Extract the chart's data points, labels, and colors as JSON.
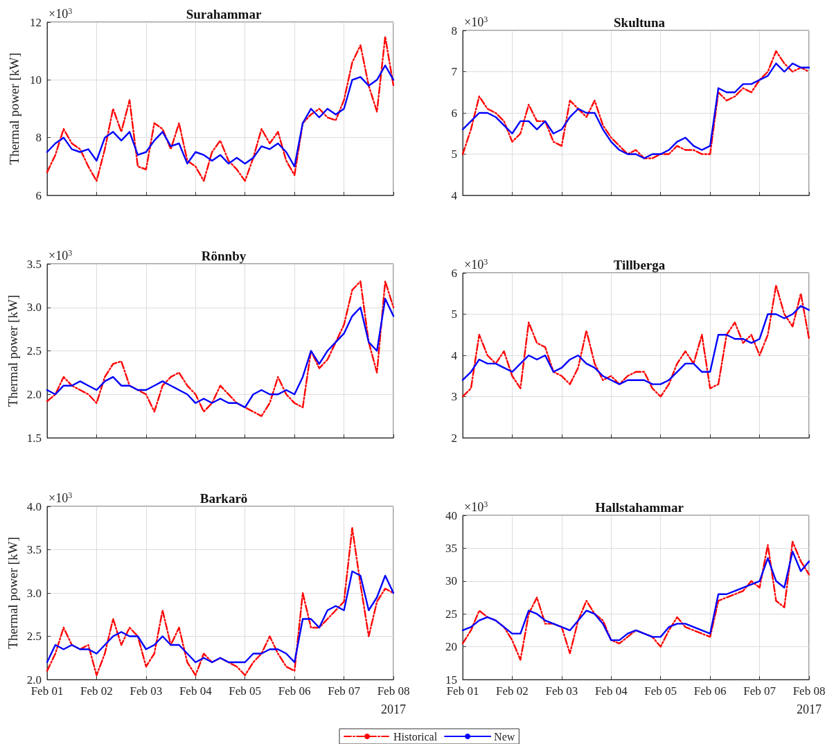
{
  "chart_data": [
    {
      "type": "line",
      "title": "Surahammar",
      "ylabel": "Thermal power [kW]",
      "annotations": [
        "×10$^{3}$"
      ],
      "tick_labels": "y",
      "grid": true,
      "legend": false,
      "marker": "none",
      "x": [
        "2017-02-01T00:00",
        "2017-02-01T04:00",
        "2017-02-01T08:00",
        "2017-02-01T12:00",
        "2017-02-01T16:00",
        "2017-02-01T20:00",
        "2017-02-02T00:00",
        "2017-02-02T04:00",
        "2017-02-02T08:00",
        "2017-02-02T12:00",
        "2017-02-02T16:00",
        "2017-02-02T20:00",
        "2017-02-03T00:00",
        "2017-02-03T04:00",
        "2017-02-03T08:00",
        "2017-02-03T12:00",
        "2017-02-03T16:00",
        "2017-02-03T20:00",
        "2017-02-04T00:00",
        "2017-02-04T04:00",
        "2017-02-04T08:00",
        "2017-02-04T12:00",
        "2017-02-04T16:00",
        "2017-02-04T20:00",
        "2017-02-05T00:00",
        "2017-02-05T04:00",
        "2017-02-05T08:00",
        "2017-02-05T12:00",
        "2017-02-05T16:00",
        "2017-02-05T20:00",
        "2017-02-06T00:00",
        "2017-02-06T04:00",
        "2017-02-06T08:00",
        "2017-02-06T12:00",
        "2017-02-06T16:00",
        "2017-02-06T20:00",
        "2017-02-07T00:00",
        "2017-02-07T04:00",
        "2017-02-07T08:00",
        "2017-02-07T12:00",
        "2017-02-07T16:00",
        "2017-02-07T20:00",
        "2017-02-08T00:00"
      ],
      "xlim": [
        "2017-02-01T00:00",
        "2017-02-08T00:00"
      ],
      "xticks": [
        {
          "value": "2017-02-01",
          "label": null
        },
        {
          "value": "2017-02-02",
          "label": null
        },
        {
          "value": "2017-02-03",
          "label": null
        },
        {
          "value": "2017-02-04",
          "label": null
        },
        {
          "value": "2017-02-05",
          "label": null
        },
        {
          "value": "2017-02-06",
          "label": null
        },
        {
          "value": "2017-02-07",
          "label": null
        },
        {
          "value": "2017-02-08",
          "label": null
        }
      ],
      "ylim": [
        6,
        12
      ],
      "yticks": [
        6,
        8,
        10,
        12
      ],
      "series": [
        {
          "color": "#ff0000",
          "line_style": "dashed",
          "values": [
            6.8,
            7.4,
            8.3,
            7.8,
            7.6,
            7.0,
            6.5,
            7.6,
            9.0,
            8.2,
            9.3,
            7.0,
            6.9,
            8.5,
            8.3,
            7.6,
            8.5,
            7.2,
            7.0,
            6.5,
            7.5,
            7.9,
            7.2,
            6.9,
            6.5,
            7.3,
            8.3,
            7.8,
            8.2,
            7.2,
            6.7,
            8.5,
            8.8,
            9.0,
            8.7,
            8.6,
            9.3,
            10.6,
            11.2,
            9.8,
            8.9,
            11.5,
            9.8
          ]
        },
        {
          "color": "#0000ff",
          "line_style": "solid",
          "values": [
            7.5,
            7.8,
            8.0,
            7.6,
            7.5,
            7.6,
            7.2,
            8.0,
            8.2,
            7.9,
            8.2,
            7.4,
            7.5,
            7.9,
            8.2,
            7.7,
            7.8,
            7.1,
            7.5,
            7.4,
            7.2,
            7.4,
            7.1,
            7.3,
            7.1,
            7.3,
            7.7,
            7.6,
            7.8,
            7.5,
            7.0,
            8.5,
            9.0,
            8.7,
            9.0,
            8.8,
            9.0,
            10.0,
            10.1,
            9.8,
            10.0,
            10.5,
            10.0
          ]
        }
      ]
    },
    {
      "type": "line",
      "title": "Skultuna",
      "annotations": [
        "×10$^{3}$"
      ],
      "tick_labels": "y",
      "grid": true,
      "legend": false,
      "marker": "none",
      "x": [
        "2017-02-01T00:00",
        "2017-02-01T04:00",
        "2017-02-01T08:00",
        "2017-02-01T12:00",
        "2017-02-01T16:00",
        "2017-02-01T20:00",
        "2017-02-02T00:00",
        "2017-02-02T04:00",
        "2017-02-02T08:00",
        "2017-02-02T12:00",
        "2017-02-02T16:00",
        "2017-02-02T20:00",
        "2017-02-03T00:00",
        "2017-02-03T04:00",
        "2017-02-03T08:00",
        "2017-02-03T12:00",
        "2017-02-03T16:00",
        "2017-02-03T20:00",
        "2017-02-04T00:00",
        "2017-02-04T04:00",
        "2017-02-04T08:00",
        "2017-02-04T12:00",
        "2017-02-04T16:00",
        "2017-02-04T20:00",
        "2017-02-05T00:00",
        "2017-02-05T04:00",
        "2017-02-05T08:00",
        "2017-02-05T12:00",
        "2017-02-05T16:00",
        "2017-02-05T20:00",
        "2017-02-06T00:00",
        "2017-02-06T04:00",
        "2017-02-06T08:00",
        "2017-02-06T12:00",
        "2017-02-06T16:00",
        "2017-02-06T20:00",
        "2017-02-07T00:00",
        "2017-02-07T04:00",
        "2017-02-07T08:00",
        "2017-02-07T12:00",
        "2017-02-07T16:00",
        "2017-02-07T20:00",
        "2017-02-08T00:00"
      ],
      "xlim": [
        "2017-02-01T00:00",
        "2017-02-08T00:00"
      ],
      "xticks": [
        {
          "value": "2017-02-01",
          "label": null
        },
        {
          "value": "2017-02-02",
          "label": null
        },
        {
          "value": "2017-02-03",
          "label": null
        },
        {
          "value": "2017-02-04",
          "label": null
        },
        {
          "value": "2017-02-05",
          "label": null
        },
        {
          "value": "2017-02-06",
          "label": null
        },
        {
          "value": "2017-02-07",
          "label": null
        },
        {
          "value": "2017-02-08",
          "label": null
        }
      ],
      "ylim": [
        4,
        8
      ],
      "yticks": [
        4,
        5,
        6,
        7,
        8
      ],
      "series": [
        {
          "color": "#ff0000",
          "line_style": "dashed",
          "values": [
            5.0,
            5.6,
            6.4,
            6.1,
            6.0,
            5.8,
            5.3,
            5.5,
            6.2,
            5.8,
            5.8,
            5.3,
            5.2,
            6.3,
            6.1,
            5.9,
            6.3,
            5.7,
            5.4,
            5.2,
            5.0,
            5.1,
            4.9,
            4.9,
            5.0,
            5.0,
            5.2,
            5.1,
            5.1,
            5.0,
            5.0,
            6.5,
            6.3,
            6.4,
            6.6,
            6.5,
            6.8,
            7.0,
            7.5,
            7.2,
            7.0,
            7.1,
            7.0
          ]
        },
        {
          "color": "#0000ff",
          "line_style": "solid",
          "values": [
            5.6,
            5.8,
            6.0,
            6.0,
            5.9,
            5.7,
            5.5,
            5.8,
            5.8,
            5.6,
            5.8,
            5.5,
            5.6,
            5.9,
            6.1,
            6.0,
            6.0,
            5.6,
            5.3,
            5.1,
            5.0,
            5.0,
            4.9,
            5.0,
            5.0,
            5.1,
            5.3,
            5.4,
            5.2,
            5.1,
            5.2,
            6.6,
            6.5,
            6.5,
            6.7,
            6.7,
            6.8,
            6.9,
            7.2,
            7.0,
            7.2,
            7.1,
            7.1
          ]
        }
      ]
    },
    {
      "type": "line",
      "title": "Rönnby",
      "ylabel": "Thermal power [kW]",
      "annotations": [
        "×10$^{3}$"
      ],
      "tick_labels": "y",
      "grid": true,
      "legend": false,
      "marker": "none",
      "x": [
        "2017-02-01T00:00",
        "2017-02-01T04:00",
        "2017-02-01T08:00",
        "2017-02-01T12:00",
        "2017-02-01T16:00",
        "2017-02-01T20:00",
        "2017-02-02T00:00",
        "2017-02-02T04:00",
        "2017-02-02T08:00",
        "2017-02-02T12:00",
        "2017-02-02T16:00",
        "2017-02-02T20:00",
        "2017-02-03T00:00",
        "2017-02-03T04:00",
        "2017-02-03T08:00",
        "2017-02-03T12:00",
        "2017-02-03T16:00",
        "2017-02-03T20:00",
        "2017-02-04T00:00",
        "2017-02-04T04:00",
        "2017-02-04T08:00",
        "2017-02-04T12:00",
        "2017-02-04T16:00",
        "2017-02-04T20:00",
        "2017-02-05T00:00",
        "2017-02-05T04:00",
        "2017-02-05T08:00",
        "2017-02-05T12:00",
        "2017-02-05T16:00",
        "2017-02-05T20:00",
        "2017-02-06T00:00",
        "2017-02-06T04:00",
        "2017-02-06T08:00",
        "2017-02-06T12:00",
        "2017-02-06T16:00",
        "2017-02-06T20:00",
        "2017-02-07T00:00",
        "2017-02-07T04:00",
        "2017-02-07T08:00",
        "2017-02-07T12:00",
        "2017-02-07T16:00",
        "2017-02-07T20:00",
        "2017-02-08T00:00"
      ],
      "xlim": [
        "2017-02-01T00:00",
        "2017-02-08T00:00"
      ],
      "xticks": [
        {
          "value": "2017-02-01",
          "label": null
        },
        {
          "value": "2017-02-02",
          "label": null
        },
        {
          "value": "2017-02-03",
          "label": null
        },
        {
          "value": "2017-02-04",
          "label": null
        },
        {
          "value": "2017-02-05",
          "label": null
        },
        {
          "value": "2017-02-06",
          "label": null
        },
        {
          "value": "2017-02-07",
          "label": null
        },
        {
          "value": "2017-02-08",
          "label": null
        }
      ],
      "ylim": [
        1.5,
        3.5
      ],
      "yticks": [
        1.5,
        {
          "value": 2,
          "label": "2.0"
        },
        2.5,
        {
          "value": 3,
          "label": "3.0"
        },
        3.5
      ],
      "series": [
        {
          "color": "#ff0000",
          "line_style": "dashed",
          "values": [
            1.92,
            2.0,
            2.2,
            2.1,
            2.05,
            2.0,
            1.9,
            2.2,
            2.35,
            2.38,
            2.1,
            2.05,
            2.0,
            1.8,
            2.1,
            2.2,
            2.25,
            2.1,
            2.0,
            1.8,
            1.9,
            2.1,
            2.0,
            1.9,
            1.85,
            1.8,
            1.75,
            1.9,
            2.2,
            2.0,
            1.9,
            1.85,
            2.5,
            2.3,
            2.4,
            2.6,
            2.8,
            3.2,
            3.3,
            2.6,
            2.25,
            3.3,
            3.0
          ]
        },
        {
          "color": "#0000ff",
          "line_style": "solid",
          "values": [
            2.05,
            2.0,
            2.1,
            2.1,
            2.15,
            2.1,
            2.05,
            2.15,
            2.2,
            2.1,
            2.1,
            2.05,
            2.05,
            2.1,
            2.15,
            2.1,
            2.05,
            2.0,
            1.9,
            1.95,
            1.9,
            1.95,
            1.9,
            1.9,
            1.85,
            2.0,
            2.05,
            2.0,
            2.0,
            2.05,
            2.0,
            2.2,
            2.5,
            2.35,
            2.5,
            2.6,
            2.7,
            2.9,
            3.0,
            2.6,
            2.5,
            3.1,
            2.9
          ]
        }
      ]
    },
    {
      "type": "line",
      "title": "Tillberga",
      "annotations": [
        "×10$^{3}$"
      ],
      "tick_labels": "y",
      "grid": true,
      "legend": false,
      "marker": "none",
      "x": [
        "2017-02-01T00:00",
        "2017-02-01T04:00",
        "2017-02-01T08:00",
        "2017-02-01T12:00",
        "2017-02-01T16:00",
        "2017-02-01T20:00",
        "2017-02-02T00:00",
        "2017-02-02T04:00",
        "2017-02-02T08:00",
        "2017-02-02T12:00",
        "2017-02-02T16:00",
        "2017-02-02T20:00",
        "2017-02-03T00:00",
        "2017-02-03T04:00",
        "2017-02-03T08:00",
        "2017-02-03T12:00",
        "2017-02-03T16:00",
        "2017-02-03T20:00",
        "2017-02-04T00:00",
        "2017-02-04T04:00",
        "2017-02-04T08:00",
        "2017-02-04T12:00",
        "2017-02-04T16:00",
        "2017-02-04T20:00",
        "2017-02-05T00:00",
        "2017-02-05T04:00",
        "2017-02-05T08:00",
        "2017-02-05T12:00",
        "2017-02-05T16:00",
        "2017-02-05T20:00",
        "2017-02-06T00:00",
        "2017-02-06T04:00",
        "2017-02-06T08:00",
        "2017-02-06T12:00",
        "2017-02-06T16:00",
        "2017-02-06T20:00",
        "2017-02-07T00:00",
        "2017-02-07T04:00",
        "2017-02-07T08:00",
        "2017-02-07T12:00",
        "2017-02-07T16:00",
        "2017-02-07T20:00",
        "2017-02-08T00:00"
      ],
      "xlim": [
        "2017-02-01T00:00",
        "2017-02-08T00:00"
      ],
      "xticks": [
        {
          "value": "2017-02-01",
          "label": null
        },
        {
          "value": "2017-02-02",
          "label": null
        },
        {
          "value": "2017-02-03",
          "label": null
        },
        {
          "value": "2017-02-04",
          "label": null
        },
        {
          "value": "2017-02-05",
          "label": null
        },
        {
          "value": "2017-02-06",
          "label": null
        },
        {
          "value": "2017-02-07",
          "label": null
        },
        {
          "value": "2017-02-08",
          "label": null
        }
      ],
      "ylim": [
        2,
        6
      ],
      "yticks": [
        2,
        3,
        4,
        5,
        6
      ],
      "series": [
        {
          "color": "#ff0000",
          "line_style": "dashed",
          "values": [
            3.0,
            3.2,
            4.5,
            4.0,
            3.8,
            4.1,
            3.5,
            3.2,
            4.8,
            4.3,
            4.2,
            3.6,
            3.5,
            3.3,
            3.7,
            4.6,
            3.8,
            3.4,
            3.5,
            3.3,
            3.5,
            3.6,
            3.6,
            3.2,
            3.0,
            3.3,
            3.8,
            4.1,
            3.8,
            4.5,
            3.2,
            3.3,
            4.5,
            4.8,
            4.3,
            4.5,
            4.0,
            4.5,
            5.7,
            5.0,
            4.7,
            5.5,
            4.4
          ]
        },
        {
          "color": "#0000ff",
          "line_style": "solid",
          "values": [
            3.4,
            3.6,
            3.9,
            3.8,
            3.8,
            3.7,
            3.6,
            3.8,
            4.0,
            3.9,
            4.0,
            3.6,
            3.7,
            3.9,
            4.0,
            3.8,
            3.7,
            3.5,
            3.4,
            3.3,
            3.4,
            3.4,
            3.4,
            3.3,
            3.3,
            3.4,
            3.6,
            3.8,
            3.8,
            3.6,
            3.6,
            4.5,
            4.5,
            4.4,
            4.4,
            4.3,
            4.4,
            5.0,
            5.0,
            4.9,
            5.0,
            5.2,
            5.1
          ]
        }
      ]
    },
    {
      "type": "line",
      "title": "Barkarö",
      "ylabel": "Thermal power [kW]",
      "annotations": [
        "×10$^{3}$",
        "2017"
      ],
      "grid": true,
      "legend": false,
      "marker": "none",
      "x": [
        "2017-02-01T00:00",
        "2017-02-01T04:00",
        "2017-02-01T08:00",
        "2017-02-01T12:00",
        "2017-02-01T16:00",
        "2017-02-01T20:00",
        "2017-02-02T00:00",
        "2017-02-02T04:00",
        "2017-02-02T08:00",
        "2017-02-02T12:00",
        "2017-02-02T16:00",
        "2017-02-02T20:00",
        "2017-02-03T00:00",
        "2017-02-03T04:00",
        "2017-02-03T08:00",
        "2017-02-03T12:00",
        "2017-02-03T16:00",
        "2017-02-03T20:00",
        "2017-02-04T00:00",
        "2017-02-04T04:00",
        "2017-02-04T08:00",
        "2017-02-04T12:00",
        "2017-02-04T16:00",
        "2017-02-04T20:00",
        "2017-02-05T00:00",
        "2017-02-05T04:00",
        "2017-02-05T08:00",
        "2017-02-05T12:00",
        "2017-02-05T16:00",
        "2017-02-05T20:00",
        "2017-02-06T00:00",
        "2017-02-06T04:00",
        "2017-02-06T08:00",
        "2017-02-06T12:00",
        "2017-02-06T16:00",
        "2017-02-06T20:00",
        "2017-02-07T00:00",
        "2017-02-07T04:00",
        "2017-02-07T08:00",
        "2017-02-07T12:00",
        "2017-02-07T16:00",
        "2017-02-07T20:00",
        "2017-02-08T00:00"
      ],
      "xlim": [
        "2017-02-01T00:00",
        "2017-02-08T00:00"
      ],
      "xticks": [
        {
          "value": "2017-02-01",
          "label": "Feb 01"
        },
        {
          "value": "2017-02-02",
          "label": "Feb 02"
        },
        {
          "value": "2017-02-03",
          "label": "Feb 03"
        },
        {
          "value": "2017-02-04",
          "label": "Feb 04"
        },
        {
          "value": "2017-02-05",
          "label": "Feb 05"
        },
        {
          "value": "2017-02-06",
          "label": "Feb 06"
        },
        {
          "value": "2017-02-07",
          "label": "Feb 07"
        },
        {
          "value": "2017-02-08",
          "label": "Feb 08"
        }
      ],
      "ylim": [
        2,
        4
      ],
      "yticks": [
        {
          "value": 2,
          "label": "2.0"
        },
        2.5,
        {
          "value": 3,
          "label": "3.0"
        },
        3.5,
        {
          "value": 4,
          "label": "4.0"
        }
      ],
      "series": [
        {
          "color": "#ff0000",
          "line_style": "dashed",
          "values": [
            2.1,
            2.3,
            2.6,
            2.4,
            2.35,
            2.4,
            2.05,
            2.3,
            2.7,
            2.4,
            2.6,
            2.5,
            2.15,
            2.3,
            2.8,
            2.4,
            2.6,
            2.2,
            2.05,
            2.3,
            2.2,
            2.25,
            2.2,
            2.15,
            2.05,
            2.2,
            2.3,
            2.5,
            2.3,
            2.15,
            2.1,
            3.0,
            2.6,
            2.6,
            2.7,
            2.8,
            2.9,
            3.75,
            3.1,
            2.5,
            2.9,
            3.05,
            3.0
          ]
        },
        {
          "color": "#0000ff",
          "line_style": "solid",
          "values": [
            2.2,
            2.4,
            2.35,
            2.4,
            2.35,
            2.35,
            2.3,
            2.4,
            2.5,
            2.55,
            2.5,
            2.5,
            2.35,
            2.4,
            2.5,
            2.4,
            2.4,
            2.3,
            2.2,
            2.25,
            2.2,
            2.25,
            2.2,
            2.2,
            2.2,
            2.3,
            2.3,
            2.35,
            2.35,
            2.3,
            2.2,
            2.7,
            2.7,
            2.6,
            2.8,
            2.85,
            2.8,
            3.25,
            3.2,
            2.8,
            2.95,
            3.2,
            3.0
          ]
        }
      ]
    },
    {
      "type": "line",
      "title": "Hallstahammar",
      "annotations": [
        "×10$^{3}$",
        "2017"
      ],
      "grid": true,
      "legend": "bottom",
      "marker": "none",
      "x": [
        "2017-02-01T00:00",
        "2017-02-01T04:00",
        "2017-02-01T08:00",
        "2017-02-01T12:00",
        "2017-02-01T16:00",
        "2017-02-01T20:00",
        "2017-02-02T00:00",
        "2017-02-02T04:00",
        "2017-02-02T08:00",
        "2017-02-02T12:00",
        "2017-02-02T16:00",
        "2017-02-02T20:00",
        "2017-02-03T00:00",
        "2017-02-03T04:00",
        "2017-02-03T08:00",
        "2017-02-03T12:00",
        "2017-02-03T16:00",
        "2017-02-03T20:00",
        "2017-02-04T00:00",
        "2017-02-04T04:00",
        "2017-02-04T08:00",
        "2017-02-04T12:00",
        "2017-02-04T16:00",
        "2017-02-04T20:00",
        "2017-02-05T00:00",
        "2017-02-05T04:00",
        "2017-02-05T08:00",
        "2017-02-05T12:00",
        "2017-02-05T16:00",
        "2017-02-05T20:00",
        "2017-02-06T00:00",
        "2017-02-06T04:00",
        "2017-02-06T08:00",
        "2017-02-06T12:00",
        "2017-02-06T16:00",
        "2017-02-06T20:00",
        "2017-02-07T00:00",
        "2017-02-07T04:00",
        "2017-02-07T08:00",
        "2017-02-07T12:00",
        "2017-02-07T16:00",
        "2017-02-07T20:00",
        "2017-02-08T00:00"
      ],
      "xlim": [
        "2017-02-01T00:00",
        "2017-02-08T00:00"
      ],
      "xticks": [
        {
          "value": "2017-02-01",
          "label": "Feb 01"
        },
        {
          "value": "2017-02-02",
          "label": "Feb 02"
        },
        {
          "value": "2017-02-03",
          "label": "Feb 03"
        },
        {
          "value": "2017-02-04",
          "label": "Feb 04"
        },
        {
          "value": "2017-02-05",
          "label": "Feb 05"
        },
        {
          "value": "2017-02-06",
          "label": "Feb 06"
        },
        {
          "value": "2017-02-07",
          "label": "Feb 07"
        },
        {
          "value": "2017-02-08",
          "label": "Feb 08"
        }
      ],
      "ylim": [
        15,
        40
      ],
      "yticks": [
        15,
        20,
        25,
        30,
        35,
        40
      ],
      "series": [
        {
          "name": "Historical",
          "color": "#ff0000",
          "line_style": "dashed",
          "values": [
            20.5,
            22.5,
            25.5,
            24.5,
            24,
            23,
            21,
            18,
            25,
            27.5,
            23.5,
            23.5,
            23,
            19,
            24,
            27,
            25,
            24,
            21,
            20.5,
            21.5,
            22.5,
            22,
            21.5,
            20,
            22.5,
            24.5,
            23,
            22.5,
            22,
            21.5,
            27,
            27.5,
            28,
            28.5,
            30,
            29,
            35.5,
            27,
            26,
            36,
            33,
            31
          ]
        },
        {
          "name": "New",
          "color": "#0000ff",
          "line_style": "solid",
          "values": [
            22.5,
            23,
            24,
            24.5,
            24,
            23,
            22,
            22,
            25.5,
            25,
            24,
            23.5,
            23,
            22.5,
            24,
            25.5,
            25,
            23.5,
            21,
            21,
            22,
            22.5,
            22,
            21.5,
            21.5,
            23,
            23.5,
            23.5,
            23,
            22.5,
            22,
            28,
            28,
            28.5,
            29,
            29.5,
            30,
            33.5,
            30,
            29,
            34.5,
            31.5,
            33
          ]
        }
      ]
    }
  ]
}
